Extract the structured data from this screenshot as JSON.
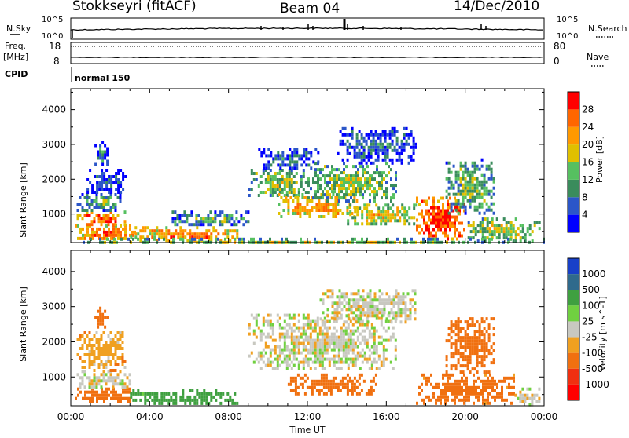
{
  "header": {
    "station": "Stokkseyri (fitACF)",
    "beam": "Beam 04",
    "date": "14/Dec/2010"
  },
  "top_panels": {
    "nsky_label": "N.Sky",
    "nsearch_label": "N.Search",
    "nsky_top_tick": "10^5",
    "nsky_bottom_tick": "10^0",
    "nsearch_top_tick": "10^5",
    "nsearch_bottom_tick": "10^0",
    "freq_label": "Freq.",
    "freq_unit": "[MHz]",
    "freq_ticks": [
      "18",
      "8"
    ],
    "nave_label": "Nave",
    "nave_ticks": [
      "80",
      "0"
    ],
    "cpid_label": "CPID",
    "cpid_value": "normal 150"
  },
  "colors": {
    "power": [
      "#0000ff",
      "#2b56c8",
      "#3a8c5c",
      "#56c060",
      "#e0c000",
      "#ff9900",
      "#ff6600",
      "#ff0000"
    ],
    "velocity": [
      "#1840c8",
      "#2f6a8c",
      "#3fa040",
      "#70d040",
      "#c8c8c0",
      "#f0a020",
      "#f07010",
      "#f03010",
      "#ff0000"
    ]
  },
  "chart_data": [
    {
      "type": "heatmap",
      "title": "",
      "xlabel": "",
      "ylabel": "Slant Range [km]",
      "x_ticks": [
        "00:00",
        "04:00",
        "08:00",
        "12:00",
        "16:00",
        "20:00",
        "00:00"
      ],
      "x_range_hours": [
        0,
        24
      ],
      "y_ticks": [
        1000,
        2000,
        3000,
        4000
      ],
      "ylim": [
        180,
        4600
      ],
      "colorbar": {
        "label": "Power [dB]",
        "ticks": [
          "4",
          "8",
          "12",
          "16",
          "20",
          "24",
          "28"
        ],
        "range": [
          0,
          32
        ]
      },
      "regions": [
        {
          "t0": 0.2,
          "t1": 3.2,
          "r0": 250,
          "r1": 700,
          "level": 0.85
        },
        {
          "t0": 0.3,
          "t1": 2.8,
          "r0": 700,
          "r1": 1100,
          "level": 0.9
        },
        {
          "t0": 0.3,
          "t1": 2.5,
          "r0": 1100,
          "r1": 1600,
          "level": 0.45
        },
        {
          "t0": 0.8,
          "t1": 2.8,
          "r0": 1600,
          "r1": 2300,
          "level": 0.25
        },
        {
          "t0": 1.2,
          "t1": 1.8,
          "r0": 2400,
          "r1": 3100,
          "level": 0.35
        },
        {
          "t0": 3.0,
          "t1": 8.5,
          "r0": 230,
          "r1": 650,
          "level": 0.8
        },
        {
          "t0": 5.0,
          "t1": 9.0,
          "r0": 700,
          "r1": 1100,
          "level": 0.45
        },
        {
          "t0": 9.0,
          "t1": 12.0,
          "r0": 1500,
          "r1": 2300,
          "level": 0.55
        },
        {
          "t0": 9.5,
          "t1": 12.5,
          "r0": 2300,
          "r1": 2900,
          "level": 0.3
        },
        {
          "t0": 10.5,
          "t1": 14.5,
          "r0": 900,
          "r1": 1600,
          "level": 0.75
        },
        {
          "t0": 12.0,
          "t1": 16.5,
          "r0": 1400,
          "r1": 2500,
          "level": 0.55
        },
        {
          "t0": 13.5,
          "t1": 17.5,
          "r0": 2500,
          "r1": 3500,
          "level": 0.3
        },
        {
          "t0": 14.0,
          "t1": 17.5,
          "r0": 700,
          "r1": 1300,
          "level": 0.65
        },
        {
          "t0": 17.5,
          "t1": 20.0,
          "r0": 250,
          "r1": 1500,
          "level": 0.97
        },
        {
          "t0": 19.0,
          "t1": 21.5,
          "r0": 1000,
          "r1": 2600,
          "level": 0.5
        },
        {
          "t0": 20.0,
          "t1": 23.8,
          "r0": 250,
          "r1": 900,
          "level": 0.6
        },
        {
          "t0": 0.0,
          "t1": 24.0,
          "r0": 180,
          "r1": 320,
          "level": 0.55
        }
      ]
    },
    {
      "type": "heatmap",
      "title": "",
      "xlabel": "Time UT",
      "ylabel": "Slant Range [km]",
      "x_ticks": [
        "00:00",
        "04:00",
        "08:00",
        "12:00",
        "16:00",
        "20:00",
        "00:00"
      ],
      "x_range_hours": [
        0,
        24
      ],
      "y_ticks": [
        1000,
        2000,
        3000,
        4000
      ],
      "ylim": [
        180,
        4600
      ],
      "colorbar": {
        "label": "Velocity [m s^-1]",
        "ticks": [
          "1000",
          "500",
          "100",
          "25",
          "-25",
          "-100",
          "-500",
          "-1000"
        ],
        "range": [
          -1000,
          1000
        ]
      },
      "regions": [
        {
          "t0": 0.2,
          "t1": 3.0,
          "r0": 300,
          "r1": 700,
          "level": -200
        },
        {
          "t0": 0.3,
          "t1": 3.0,
          "r0": 700,
          "r1": 1200,
          "level": 0
        },
        {
          "t0": 0.3,
          "t1": 2.8,
          "r0": 1200,
          "r1": 2300,
          "level": -60
        },
        {
          "t0": 1.2,
          "t1": 1.8,
          "r0": 2400,
          "r1": 3000,
          "level": -300
        },
        {
          "t0": 3.0,
          "t1": 8.5,
          "r0": 230,
          "r1": 650,
          "level": 150
        },
        {
          "t0": 9.0,
          "t1": 16.5,
          "r0": 1200,
          "r1": 2800,
          "level": 0
        },
        {
          "t0": 12.5,
          "t1": 17.5,
          "r0": 2600,
          "r1": 3500,
          "level": 0
        },
        {
          "t0": 11.0,
          "t1": 15.5,
          "r0": 500,
          "r1": 1100,
          "level": -250
        },
        {
          "t0": 17.5,
          "t1": 22.5,
          "r0": 250,
          "r1": 1100,
          "level": -150
        },
        {
          "t0": 19.0,
          "t1": 21.5,
          "r0": 1100,
          "r1": 2700,
          "level": -300
        },
        {
          "t0": 22.5,
          "t1": 23.9,
          "r0": 250,
          "r1": 700,
          "level": 0
        }
      ]
    }
  ]
}
